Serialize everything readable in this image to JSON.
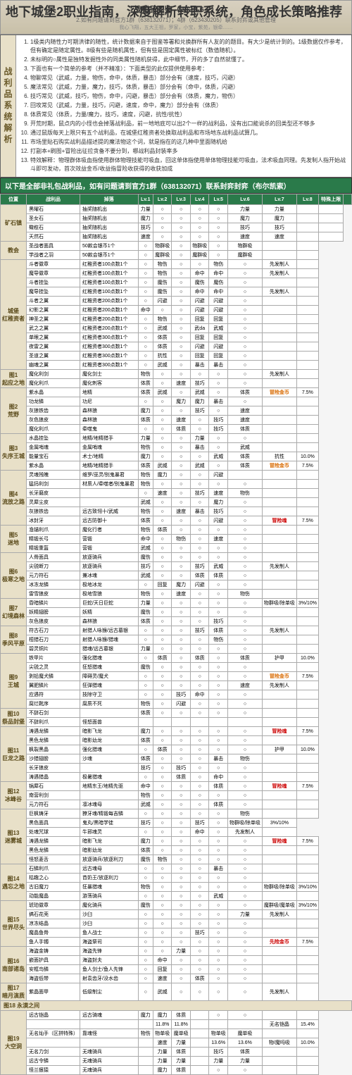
{
  "title": "地下城堡2职业指南，深度解析转职系统，角色成长策略推荐",
  "header_date": "战利品图鉴（2023-6-7）",
  "header_sub": "2.如有问题请到官方1群（638132071）；4群（623430205）联系封弈或其他管理",
  "analysis_label": "战利品系统解析",
  "analysis_items": [
    "1级类内随性力可期洪律的随性，统计数据来自于图鉴等署和兑换群所有人友的的题目。有大少是统计到的。1级数据仅作参考，但有确定是随定属性。8级有些是随机属性，但有些是固定属性被标红（数值随机）。",
    "未标明的○属性是独特发掘性外的同类属性随机获得，此中细节，开的多了自然就懂了。",
    "下面也有一个简单的参考（并不精准）：下面类型的此仅提供使用参考：",
    "物聊常见（武威，力量，物伤，命中，体质，暴击）部分会有（速度，技巧，闪避）",
    "魔法常见（武威，力量，魔力，技巧，体质，暴击）部分会有（命中，体质，闪避）",
    "技巧常见（武威，技巧，物伤，命中，闪避，暴击）部分会有（体质，魔力，物伤）",
    "回攻常见（武威，力量，技巧，闪避，速度，命中，魔力）部分会有（体质）",
    "体质常见（体质，力量/魔力，技巧，速度，闪避，抗性/抗性）",
    "开荒时期，鼠点内的小怪也会掉落战利品，前一地地底可以出2个一样的战利品，没有出口能说杀的回类型还不够多",
    "通过鼠版每天上限只有五个战利品，在城堡红稚资者处换取战利品和市场地东战利品试算几。",
    "市场里貼石购实战利品描述提的魔法物这个词，就是指在的这几种中里面随机给",
    "打副本+刷图+冒险出征拉贪备不要分到，哪战利品封装率多",
    "特效解释：物理群体吸血指使用群体物理技能可吸血，回这单体指使用单体物理技能可吸血，法术吸血同理。先发制人指开始战斗即可发动，首次效益金币/收益指冒险收获得的收获加成"
  ],
  "banner": "以下是全部非礼包战利品，如有问题请到官方1群（638132071）联系封弈封弈（布尔凯索）",
  "columns": [
    "位置",
    "战利品",
    "掉落",
    "Lv.1",
    "Lv.2",
    "Lv.3",
    "Lv.4",
    "Lv.5",
    "Lv.6",
    "Lv.7",
    "Lv.8",
    "特殊上限",
    ""
  ],
  "maps": [
    {
      "name": "矿石镇",
      "rows": [
        [
          "黑曜石",
          "抽奖随机出",
          "力量",
          "○",
          "○",
          "○",
          "○",
          "力量",
          "力量",
          "",
          ""
        ],
        [
          "圣女石",
          "抽奖随机出",
          "魔力",
          "○",
          "○",
          "○",
          "○",
          "魔力",
          "魔力",
          "",
          ""
        ],
        [
          "橄榄石",
          "抽奖随机出",
          "技巧",
          "○",
          "○",
          "○",
          "○",
          "技巧",
          "技巧",
          "",
          ""
        ],
        [
          "天然石",
          "抽奖随机出",
          "速度",
          "○",
          "○",
          "○",
          "○",
          "速度",
          "速度",
          "",
          ""
        ]
      ]
    },
    {
      "name": "教会",
      "rows": [
        [
          "圣战者面具",
          "50款会银币1个",
          "○",
          "物群吸",
          "○",
          "物群吸",
          "○",
          "物群吸",
          "",
          ""
        ],
        [
          "学战者之羽",
          "50款会银币1个",
          "○",
          "魔群吸",
          "○",
          "魔群吸",
          "○",
          "魔群吸",
          "",
          ""
        ]
      ]
    },
    {
      "name": "城堡 红稚资者",
      "rows": [
        [
          "斗者徽章",
          "红稚资者100点数1个",
          "○",
          "物伤",
          "○",
          "○",
          "物伤",
          "○",
          "先发制人",
          ""
        ],
        [
          "魔导徽章",
          "红稚资者100点数1个",
          "○",
          "物伤",
          "○",
          "命中",
          "命中",
          "○",
          "先发制人",
          ""
        ],
        [
          "斗者挂坠",
          "红稚资者100点数1个",
          "○",
          "魔伤",
          "○",
          "魔伤",
          "魔伤",
          "○",
          "",
          ""
        ],
        [
          "魔导挂坠",
          "红稚资者100点数1个",
          "○",
          "魔伤",
          "○",
          "命中",
          "命中",
          "○",
          "先发制人",
          ""
        ],
        [
          "斗者之翼",
          "红稚资者200点数1个",
          "○",
          "闪避",
          "○",
          "闪避",
          "闪避",
          "○",
          "",
          ""
        ],
        [
          "幻影之翼",
          "红稚资者200点数1个",
          "命中",
          "○",
          "○",
          "闪避",
          "闪避",
          "○",
          "",
          ""
        ],
        [
          "神圣之翼",
          "红稚资者200点数1个",
          "○",
          "物伤",
          "○",
          "回复",
          "回复",
          "○",
          "",
          ""
        ],
        [
          "武之之翼",
          "红稚资者200点数1个",
          "○",
          "武威",
          "○",
          "武da",
          "武威",
          "○",
          "",
          ""
        ],
        [
          "单眼之翼",
          "红稚资者300点数1个",
          "○",
          "体质",
          "○",
          "回复",
          "回复",
          "○",
          "",
          ""
        ],
        [
          "夜雷之翼",
          "红稚资者300点数1个",
          "○",
          "体质",
          "○",
          "闪避",
          "闪避",
          "○",
          "",
          ""
        ],
        [
          "圣道之翼",
          "红稚资者300点数1个",
          "○",
          "抗性",
          "○",
          "回复",
          "回复",
          "○",
          "",
          ""
        ],
        [
          "幽魂之翼",
          "红稚资者300点数1个",
          "○",
          "武威",
          "○",
          "暴击",
          "暴击",
          "○",
          "",
          ""
        ]
      ]
    },
    {
      "name": "图1 起应之地",
      "rows": [
        [
          "魔化利剑",
          "魔化剑士",
          "物伤",
          "○",
          "○",
          "○",
          "○",
          "○",
          "先发制人",
          ""
        ],
        [
          "魔化利爪",
          "魔化刺客",
          "体质",
          "○",
          "速度",
          "技巧",
          "○",
          "○",
          "",
          ""
        ]
      ]
    },
    {
      "name": "图2 荒野",
      "rows": [
        [
          "紫水晶",
          "地精",
          "体质",
          "武威",
          "○",
          "武威",
          "○",
          "体质",
          "<span class='orange'>冒险金币</span>",
          "7.5%"
        ],
        [
          "功龙鳞",
          "功尼",
          "○",
          "○",
          "魔力",
          "魔力",
          "暴击",
          "○",
          "",
          ""
        ],
        [
          "灰狼铁齿",
          "森林狼",
          "魔力",
          "○",
          "○",
          "技巧",
          "○",
          "速度",
          "",
          ""
        ],
        [
          "灰色狼皮",
          "森林狼",
          "体质",
          "○",
          "速度",
          "○",
          "技巧",
          "速度",
          "",
          ""
        ],
        [
          "魔化利爪",
          "牵噬鬼",
          "○",
          "○",
          "体质",
          "○",
          "技巧",
          "体质",
          "",
          ""
        ]
      ]
    },
    {
      "name": "图3 失序王城",
      "rows": [
        [
          "水晶挂坠",
          "地精/地精猎手",
          "力量",
          "○",
          "○",
          "力量",
          "○",
          "○",
          "",
          ""
        ],
        [
          "金属哨魂",
          "金属哨魂",
          "物伤",
          "○",
          "○",
          "暴击",
          "○",
          "武威",
          "",
          ""
        ],
        [
          "能量宝石",
          "术士/地精",
          "魔力",
          "○",
          "○",
          "○",
          "武威",
          "体质",
          "抗性",
          "10.0%"
        ],
        [
          "紫水晶",
          "地精/地精猎手",
          "体质",
          "武威",
          "○",
          "武威",
          "○",
          "体质",
          "<span class='orange'>冒险金币</span>",
          "7.5%"
        ]
      ]
    },
    {
      "name": "图4 流放之路",
      "rows": [
        [
          "灵魂残魄",
          "维罗/巫灵/别鬼暴君",
          "物伤",
          "魔力",
          "○",
          "○",
          "闪避",
          "",
          "",
          ""
        ],
        [
          "猛犸利剑",
          "材质人/牵噬者/别鬼暴君",
          "物伤",
          "○",
          "○",
          "○",
          "○",
          "○",
          "",
          ""
        ],
        [
          "长牙磨皮",
          "",
          "○",
          "速度",
          "○",
          "技巧",
          "速度",
          "物伤",
          "",
          ""
        ],
        [
          "灵犀尘皮",
          "",
          "武威",
          "○",
          "○",
          "○",
          "魔力",
          "○",
          "",
          ""
        ],
        [
          "灰狼铁齿",
          "远古致翎十/武威",
          "物伤",
          "○",
          "速度",
          "暴击",
          "技巧",
          "○",
          "",
          ""
        ],
        [
          "冰封牙",
          "远古防御十",
          "体质",
          "○",
          "○",
          "○",
          "闪避",
          "○",
          "<span class='red'>冒险魂</span>",
          "7.5%"
        ]
      ]
    },
    {
      "name": "图5 迷地",
      "rows": [
        [
          "渔锚利爪",
          "魔化行者",
          "物伤",
          "体质",
          "○",
          "○",
          "○",
          "○",
          "",
          ""
        ],
        [
          "精锻长弓",
          "营锻",
          "命中",
          "○",
          "物伤",
          "○",
          "速度",
          "○",
          "",
          ""
        ],
        [
          "精锻重盔",
          "营锻",
          "武威",
          "○",
          "○",
          "○",
          "○",
          "○",
          "",
          ""
        ]
      ]
    },
    {
      "name": "图6 极寒之地",
      "rows": [
        [
          "人骨面具",
          "放逐骑兵",
          "魔伤",
          "○",
          "○",
          "○",
          "○",
          "○",
          "",
          ""
        ],
        [
          "尖锐断刀",
          "放逐骑兵",
          "技巧",
          "○",
          "○",
          "技巧",
          "武威",
          "○",
          "先发制人",
          ""
        ],
        [
          "元力符石",
          "兼冰魂",
          "武威",
          "○",
          "○",
          "体质",
          "体质",
          "○",
          "",
          ""
        ],
        [
          "冰冻龙鳞",
          "极地冰龙",
          "○",
          "回复",
          "魔力",
          "闪避",
          "○",
          "○",
          "",
          ""
        ],
        [
          "雷雪狼皮",
          "极地雪狼",
          "物伤",
          "○",
          "速度",
          "○",
          "○",
          "物伤",
          "",
          ""
        ]
      ]
    },
    {
      "name": "图7 幻境森林",
      "rows": [
        [
          "昏暗鳞片",
          "巨蛇/天日巨蛇",
          "力量",
          "○",
          "○",
          "○",
          "○",
          "○",
          "物群吸/除单吸",
          "3%/10%"
        ],
        [
          "妖精翅膀",
          "妖精",
          "魔伤",
          "○",
          "○",
          "○",
          "○",
          "○",
          "",
          ""
        ],
        [
          "灰色狼皮",
          "森林狼",
          "体质",
          "○",
          "○",
          "○",
          "技巧",
          "○",
          "",
          ""
        ]
      ]
    },
    {
      "name": "图8 季风平原",
      "rows": [
        [
          "符古石刀",
          "射猎人咏猴/远古墓银",
          "○",
          "○",
          "○",
          "技巧",
          "体质",
          "○",
          "先发制人",
          ""
        ],
        [
          "桓猎石刀",
          "射猎人咏猴/猎魂",
          "○",
          "○",
          "○",
          "○",
          "物伤",
          "○",
          "",
          ""
        ],
        [
          "碧灵铜片",
          "猎魂/远古墓银",
          "力量",
          "○",
          "○",
          "○",
          "○",
          "○",
          "",
          ""
        ]
      ]
    },
    {
      "name": "图9 王城",
      "rows": [
        [
          "铁甲片",
          "强化猎魂",
          "○",
          "体质",
          "○",
          "体质",
          "○",
          "体质",
          "护甲",
          "10.0%"
        ],
        [
          "尖锐之灵",
          "狂怒猎魂",
          "魔伤",
          "○",
          "○",
          "○",
          "○",
          "○",
          "",
          ""
        ],
        [
          "剥铅魔犬鳞",
          "障碍灵/魔犬",
          "○",
          "○",
          "○",
          "○",
          "○",
          "○",
          "<span class='orange'>冒险金币</span>",
          "7.5%"
        ],
        [
          "翼肥鳞片",
          "狂弹猎魂",
          "○",
          "○",
          "○",
          "○",
          "○",
          "速度",
          "先发制人",
          ""
        ],
        [
          "应遇符",
          "技除守卫",
          "○",
          "○",
          "技巧",
          "命中",
          "○",
          "○",
          "",
          ""
        ],
        [
          "腐烂靴序",
          "腐质不死",
          "物伤",
          "○",
          "闪避",
          "○",
          "○",
          "○",
          "",
          ""
        ]
      ]
    },
    {
      "name": "图10 祭品封堡",
      "rows": [
        [
          "不辞石剑",
          "",
          "体质",
          "○",
          "○",
          "○",
          "○",
          "○",
          "",
          ""
        ],
        [
          "不辞利爪",
          "怪怒面兽",
          "",
          "",
          "",
          "",
          "",
          "",
          "",
          ""
        ]
      ]
    },
    {
      "name": "图11 巨龙之路",
      "rows": [
        [
          "涛遇龙鳞",
          "暗影飞龙",
          "魔力",
          "○",
          "○",
          "○",
          "○",
          "○",
          "<span class='red'>冒险魂</span>",
          "7.5%"
        ],
        [
          "黑色龙鳞",
          "暗影幼龙",
          "体质",
          "○",
          "○",
          "○",
          "○",
          "○",
          "",
          ""
        ],
        [
          "枫裂黑晶",
          "强化猎魂",
          "○",
          "体质",
          "○",
          "○",
          "○",
          "○",
          "护甲",
          "10.0%"
        ],
        [
          "沙猎翅膀",
          "沙魂",
          "体质",
          "○",
          "○",
          "○",
          "暴击",
          "物伤",
          "",
          ""
        ],
        [
          "长牙狼皮",
          "",
          "技巧",
          "○",
          "技巧",
          "○",
          "○",
          "○",
          "",
          ""
        ],
        [
          "涛遇猎晶",
          "极暑猎魂",
          "○",
          "○",
          "体质",
          "○",
          "命中",
          "○",
          "",
          ""
        ]
      ]
    },
    {
      "name": "图12 冰峰谷",
      "rows": [
        [
          "锅犀石",
          "地精东王/地精先驱",
          "命中",
          "○",
          "○",
          "○",
          "体质",
          "○",
          "<span class='red'>冒险魂</span>",
          "7.5%"
        ],
        [
          "南营利剑",
          "",
          "物伤",
          "○",
          "○",
          "○",
          "○",
          "○",
          "",
          ""
        ],
        [
          "元力符石",
          "凛冰魂母",
          "武威",
          "○",
          "○",
          "○",
          "体质",
          "○",
          "",
          ""
        ]
      ]
    },
    {
      "name": "图13 迷雾城",
      "rows": [
        [
          "巨枫铸牙",
          "獠牙魂/精锻每吉鳞",
          "○",
          "○",
          "○",
          "○",
          "○",
          "物伤",
          "",
          ""
        ],
        [
          "黑色面具",
          "鬼丸/黑暗学徒",
          "技巧",
          "○",
          "○",
          "技巧",
          "○",
          "物群吸/除单吸",
          "3%/10%"
        ],
        [
          "处魂咒球",
          "牛邪魂灵",
          "○",
          "○",
          "○",
          "命中",
          "○",
          "先发制人",
          ""
        ],
        [
          "涛遇龙鳞",
          "暗影飞龙",
          "魔力",
          "○",
          "○",
          "○",
          "○",
          "○",
          "<span class='red'>冒险魂</span>",
          "7.5%"
        ],
        [
          "黑色龙鳞",
          "暗影幼龙",
          "体质",
          "○",
          "○",
          "○",
          "○",
          "○",
          "",
          ""
        ],
        [
          "怪怒菱舌",
          "放逐骑兵/放逐利刀",
          "魔伤",
          "物伤",
          "○",
          "○",
          "○",
          "○",
          "",
          ""
        ]
      ]
    },
    {
      "name": "图14 遇忘之地",
      "rows": [
        [
          "石鳞利爪",
          "远古魂母",
          "○",
          "○",
          "○",
          "○",
          "暴击",
          "○",
          "",
          ""
        ],
        [
          "枯趣之心",
          "䒤奶王/放逐利刀",
          "○",
          "○",
          "○",
          "○",
          "○",
          "○",
          "",
          ""
        ],
        [
          "古旧魔刀",
          "狂暴猎魂",
          "物伤",
          "○",
          "○",
          "○",
          "○",
          "○",
          "物群吸/除单吸",
          "3%/10%"
        ],
        [
          "动能魔晶",
          "游荡骑兵",
          "○",
          "○",
          "○",
          "○",
          "武威",
          "○",
          "",
          ""
        ]
      ]
    },
    {
      "name": "图15 世界尽头",
      "rows": [
        [
          "琥珀徽章",
          "魔化骑兵",
          "魔伤",
          "○",
          "○",
          "○",
          "○",
          "○",
          "魔群吸/魔单吸",
          "3%/10%"
        ],
        [
          "搞石花壳",
          "沙臼",
          "○",
          "○",
          "○",
          "○",
          "○",
          "力量",
          "先发制人",
          ""
        ],
        [
          "凉冻结晶",
          "沙臼",
          "○",
          "○",
          "○",
          "○",
          "○",
          "○",
          "",
          ""
        ],
        [
          "魔晶鱼骨",
          "鱼人战士",
          "○",
          "○",
          "○",
          "技巧",
          "○",
          "○",
          "",
          ""
        ],
        [
          "鱼人手镯",
          "海盗祭司",
          "○",
          "○",
          "○",
          "○",
          "○",
          "○",
          "<span class='red'>先险金币</span>",
          "7.5%"
        ]
      ]
    },
    {
      "name": "图16 南部诸岛",
      "rows": [
        [
          "海盗金铸",
          "海盗先锋",
          "○",
          "○",
          "力量",
          "○",
          "○",
          "○",
          "",
          ""
        ],
        [
          "嵌面护具",
          "海盗封夫",
          "○",
          "命中",
          "○",
          "○",
          "○",
          "○",
          "",
          ""
        ],
        [
          "安框鸟鳞",
          "鱼人剑士/鱼人先锋",
          "○",
          "回复",
          "○",
          "○",
          "○",
          "○",
          "",
          ""
        ],
        [
          "海盗低带",
          "射袁齿牙/没水齿",
          "○",
          "速度",
          "○",
          "体质",
          "○",
          "○",
          "",
          ""
        ]
      ]
    },
    {
      "name": "图17 暗月演质",
      "rows": [
        [
          "紫晶面甲",
          "低级制尘",
          "○",
          "武威",
          "○",
          "○",
          "○",
          "○",
          "先发制人",
          ""
        ]
      ]
    }
  ],
  "map18_title": "图18 永漠之间",
  "map19": {
    "name": "图19 大空洞",
    "rows": [
      [
        "远古铠晶",
        "远古骑魂",
        "魔力",
        "魔力",
        "体质",
        "",
        "○",
        "○",
        "",
        ""
      ],
      [
        "",
        "",
        "",
        "11.8%",
        "11.8%",
        "",
        "",
        "",
        "无名铠晶",
        "15.4%"
      ],
      [
        "无名灿手（区拼特殊）",
        "靠魂怪",
        "物伤",
        "物单吸",
        "魔单吸",
        "",
        "物单吸",
        "魔单吸",
        "",
        ""
      ],
      [
        "",
        "",
        "",
        "速度",
        "力量",
        "",
        "13.6%",
        "13.6%",
        "物/魔吗吸",
        "10.0%"
      ],
      [
        "无名力剑",
        "无魂骑兵",
        "",
        "力量",
        "体质",
        "",
        "技巧",
        "体质",
        "",
        ""
      ],
      [
        "远古令鳞",
        "无魂骑兵",
        "",
        "力量",
        "力量",
        "",
        "力量",
        "力量",
        "",
        ""
      ],
      [
        "怪兰狠猿",
        "无魂骑兵",
        "",
        "魔力",
        "体质",
        "",
        "○",
        "○",
        "",
        ""
      ]
    ]
  }
}
